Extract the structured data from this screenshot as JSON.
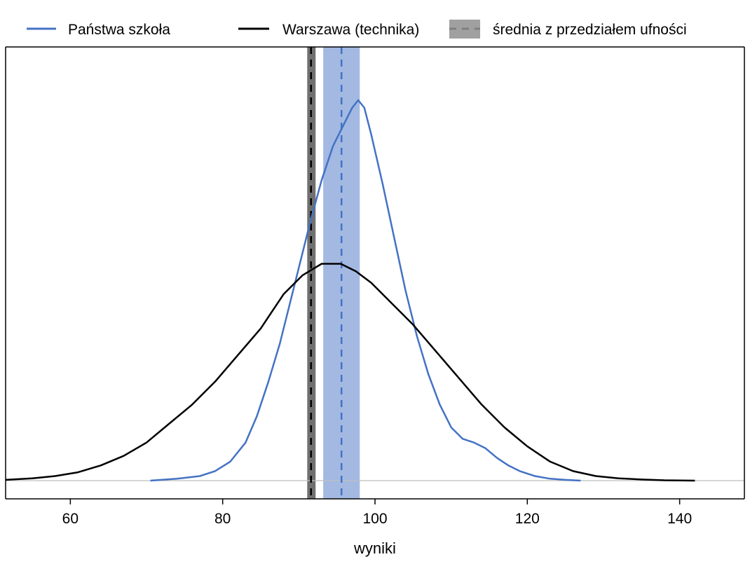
{
  "chart_data": {
    "type": "line",
    "xlabel": "wyniki",
    "xlim": [
      51.5,
      148.5
    ],
    "xticks": [
      60,
      80,
      100,
      120,
      140
    ],
    "y_axis_shown": false,
    "grid": false,
    "legend": {
      "placement": "top",
      "entries": [
        {
          "label": "Państwa szkoła",
          "color": "#4472C4",
          "style": "solid"
        },
        {
          "label": "Warszawa (technika)",
          "color": "#000000",
          "style": "solid"
        },
        {
          "label": "średnia z przedziałem ufności",
          "color": "#A0A0A0",
          "style": "dashed-band"
        }
      ]
    },
    "series": [
      {
        "name": "Państwa szkoła",
        "color": "#4472C4",
        "x": [
          70.5,
          74,
          77,
          79,
          81,
          83,
          84.5,
          86,
          87.5,
          89,
          90.5,
          91.5,
          93,
          94.5,
          96,
          97,
          97.8,
          98.6,
          99.5,
          101,
          102.5,
          104,
          105.5,
          107,
          108.5,
          110,
          111.5,
          113,
          114.5,
          116,
          117.5,
          119,
          121,
          123,
          125,
          127
        ],
        "y": [
          0,
          0.005,
          0.012,
          0.025,
          0.05,
          0.1,
          0.17,
          0.26,
          0.36,
          0.48,
          0.6,
          0.68,
          0.79,
          0.88,
          0.94,
          0.98,
          1.0,
          0.98,
          0.91,
          0.78,
          0.64,
          0.5,
          0.38,
          0.28,
          0.2,
          0.14,
          0.11,
          0.1,
          0.085,
          0.06,
          0.04,
          0.025,
          0.012,
          0.005,
          0.002,
          0
        ]
      },
      {
        "name": "Warszawa (technika)",
        "color": "#000000",
        "x": [
          51.5,
          55,
          58,
          61,
          64,
          67,
          70,
          73,
          76,
          79,
          82,
          85,
          88,
          90.5,
          93,
          95.5,
          97.5,
          99.5,
          102,
          105,
          108,
          111,
          114,
          117,
          120,
          123,
          126,
          129,
          132,
          135,
          138,
          142
        ],
        "y": [
          0.002,
          0.006,
          0.012,
          0.022,
          0.04,
          0.065,
          0.1,
          0.15,
          0.2,
          0.26,
          0.33,
          0.4,
          0.49,
          0.54,
          0.57,
          0.57,
          0.55,
          0.52,
          0.47,
          0.41,
          0.34,
          0.27,
          0.2,
          0.14,
          0.09,
          0.05,
          0.025,
          0.012,
          0.006,
          0.003,
          0.001,
          0
        ]
      }
    ],
    "means": [
      {
        "series": "Warszawa (technika)",
        "mean": 91.6,
        "ci": [
          91.1,
          92.2
        ],
        "line_color": "#000000",
        "band_color": "#707070"
      },
      {
        "series": "Państwa szkoła",
        "mean": 95.6,
        "ci": [
          93.2,
          98.0
        ],
        "line_color": "#4472C4",
        "band_color": "#A3B9E2"
      }
    ]
  }
}
